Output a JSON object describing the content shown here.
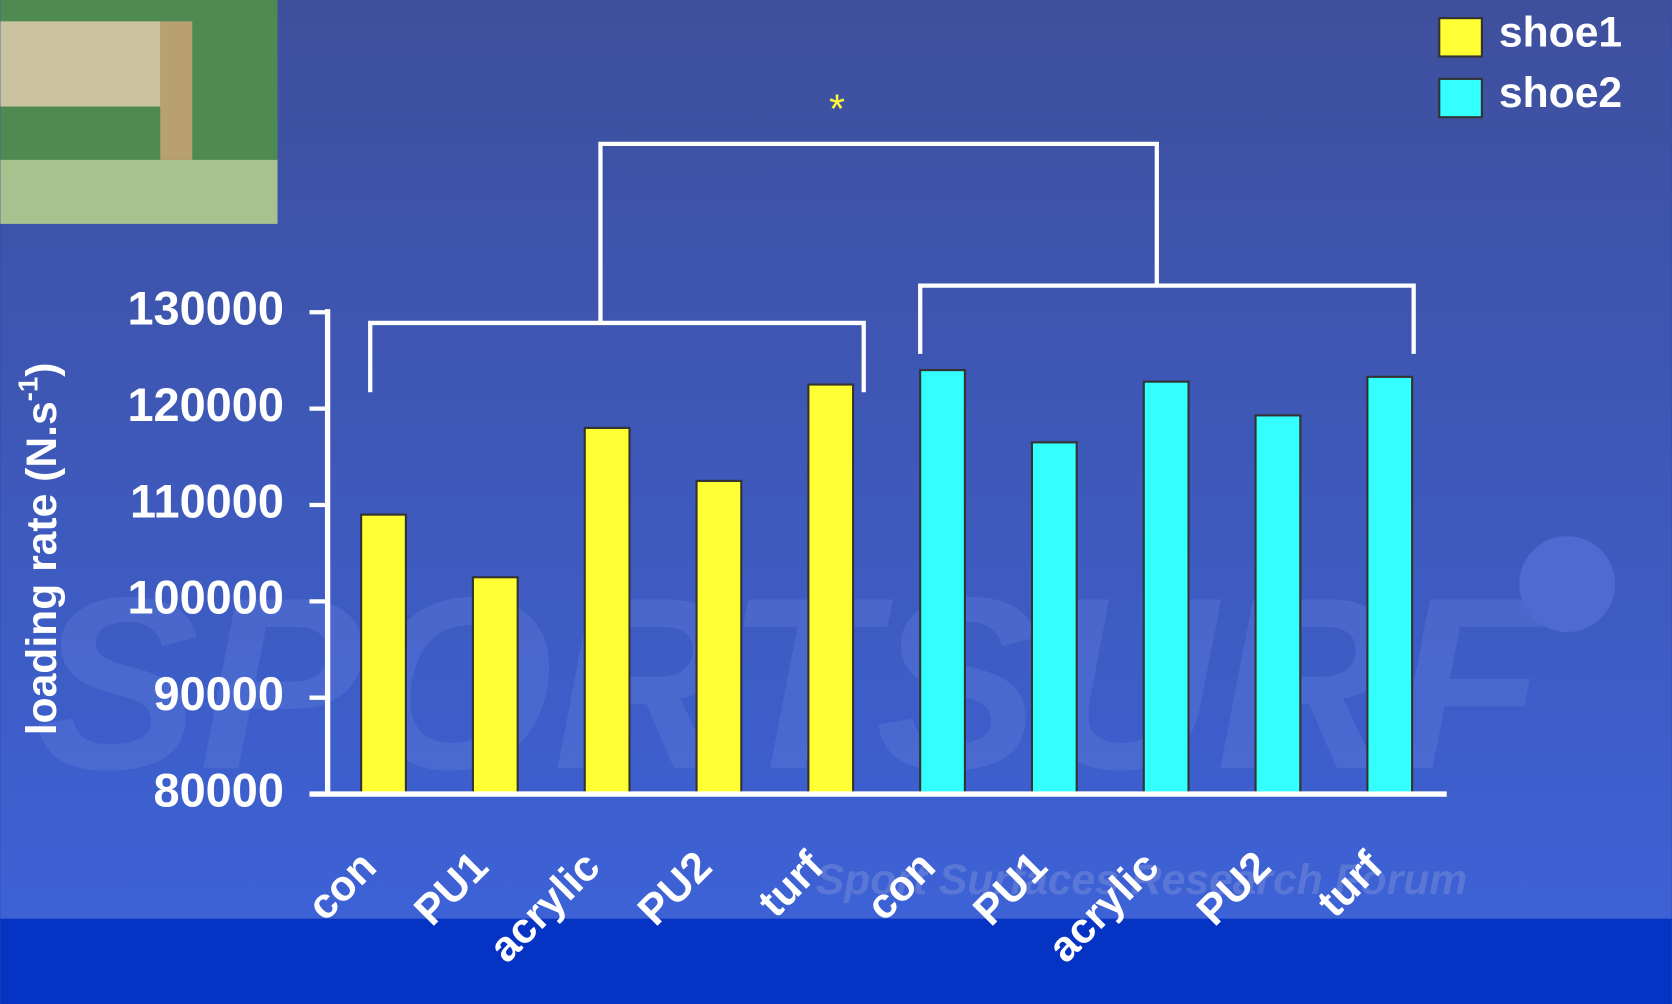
{
  "chart_data": {
    "type": "bar",
    "y_label": "loading rate (N.s",
    "y_label_sup": "-1",
    "y_label_end": ")",
    "annotation": "*",
    "watermark": "SPORTSURF",
    "watermark_sub": "Sport Surfaces Research Forum",
    "categories": [
      "con",
      "PU1",
      "acrylic",
      "PU2",
      "turf",
      "con",
      "PU1",
      "acrylic",
      "PU2",
      "turf"
    ],
    "series": [
      {
        "name": "shoe1",
        "color": "#ffff33",
        "values": [
          109000,
          102500,
          118000,
          112500,
          122500,
          null,
          null,
          null,
          null,
          null
        ]
      },
      {
        "name": "shoe2",
        "color": "#33ffff",
        "values": [
          null,
          null,
          null,
          null,
          null,
          124000,
          116500,
          122800,
          119300,
          123300
        ]
      }
    ],
    "ylim": [
      80000,
      130000
    ],
    "yticks": [
      80000,
      90000,
      100000,
      110000,
      120000,
      130000
    ],
    "grid": false,
    "legend": "top-right"
  }
}
